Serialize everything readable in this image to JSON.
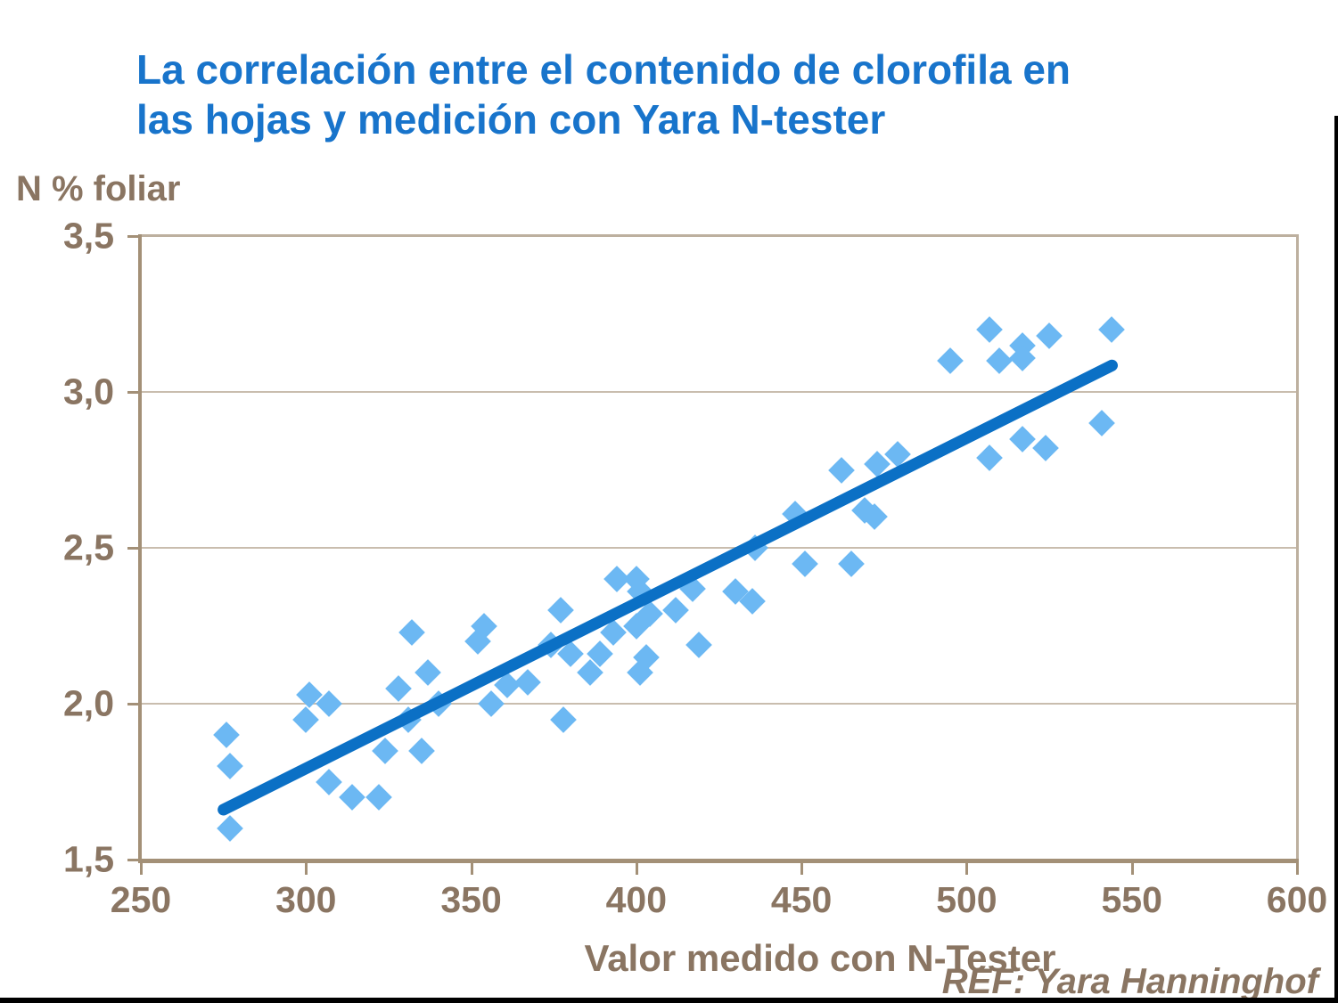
{
  "title": {
    "line1": "La correlación entre el contenido de clorofila en",
    "line2": "las hojas y medición con Yara N-tester"
  },
  "ref_text": "REF: Yara Hanninghof",
  "colors": {
    "title_blue": "#1874CB",
    "text_brown": "#8A7562",
    "axis_line": "#A39077",
    "frame_line": "#BDB09F",
    "gridline": "#C9BDAE",
    "marker_fill": "#6CB8F3",
    "trend_line": "#0B70C5",
    "border_black": "#000000",
    "background": "#FFFFFF"
  },
  "chart_data": {
    "type": "scatter",
    "title": "La correlación entre el contenido de clorofila en las hojas y medición con Yara N-tester",
    "xlabel": "Valor medido con N-Tester",
    "ylabel": "N % foliar",
    "xlim": [
      250,
      600
    ],
    "ylim": [
      1.5,
      3.5
    ],
    "x_ticks": [
      {
        "value": 250,
        "label": "250"
      },
      {
        "value": 300,
        "label": "300"
      },
      {
        "value": 350,
        "label": "350"
      },
      {
        "value": 400,
        "label": "400"
      },
      {
        "value": 450,
        "label": "450"
      },
      {
        "value": 500,
        "label": "500"
      },
      {
        "value": 550,
        "label": "550"
      },
      {
        "value": 600,
        "label": "600"
      }
    ],
    "y_ticks": [
      {
        "value": 3.5,
        "label": "3,5"
      },
      {
        "value": 3.0,
        "label": "3,0"
      },
      {
        "value": 2.5,
        "label": "2,5"
      },
      {
        "value": 2.0,
        "label": "2,0"
      },
      {
        "value": 1.5,
        "label": "1,5"
      }
    ],
    "y_gridlines": [
      3.0,
      2.5,
      2.0
    ],
    "grid": "horizontal-only",
    "legend": "none",
    "marker": "diamond",
    "points": [
      [
        276,
        1.9
      ],
      [
        277,
        1.8
      ],
      [
        277,
        1.6
      ],
      [
        300,
        1.95
      ],
      [
        301,
        2.03
      ],
      [
        307,
        2.0
      ],
      [
        307,
        1.75
      ],
      [
        314,
        1.7
      ],
      [
        322,
        1.7
      ],
      [
        324,
        1.85
      ],
      [
        328,
        2.05
      ],
      [
        331,
        1.95
      ],
      [
        332,
        2.23
      ],
      [
        335,
        1.85
      ],
      [
        337,
        2.1
      ],
      [
        340,
        2.0
      ],
      [
        352,
        2.2
      ],
      [
        354,
        2.25
      ],
      [
        356,
        2.0
      ],
      [
        361,
        2.06
      ],
      [
        367,
        2.07
      ],
      [
        374,
        2.19
      ],
      [
        377,
        2.3
      ],
      [
        378,
        1.95
      ],
      [
        380,
        2.16
      ],
      [
        386,
        2.1
      ],
      [
        389,
        2.16
      ],
      [
        393,
        2.23
      ],
      [
        394,
        2.4
      ],
      [
        400,
        2.4
      ],
      [
        401,
        2.36
      ],
      [
        400,
        2.25
      ],
      [
        404,
        2.29
      ],
      [
        403,
        2.15
      ],
      [
        401,
        2.1
      ],
      [
        412,
        2.3
      ],
      [
        417,
        2.37
      ],
      [
        419,
        2.19
      ],
      [
        430,
        2.36
      ],
      [
        435,
        2.33
      ],
      [
        436,
        2.5
      ],
      [
        448,
        2.61
      ],
      [
        451,
        2.45
      ],
      [
        462,
        2.75
      ],
      [
        465,
        2.45
      ],
      [
        469,
        2.62
      ],
      [
        472,
        2.6
      ],
      [
        473,
        2.77
      ],
      [
        479,
        2.8
      ],
      [
        495,
        3.1
      ],
      [
        507,
        3.2
      ],
      [
        507,
        2.79
      ],
      [
        510,
        3.1
      ],
      [
        517,
        3.15
      ],
      [
        517,
        3.11
      ],
      [
        517,
        2.85
      ],
      [
        524,
        2.82
      ],
      [
        525,
        3.18
      ],
      [
        541,
        2.9
      ],
      [
        544,
        3.2
      ]
    ],
    "trend_line": {
      "x1": 275,
      "y1": 1.66,
      "x2": 544,
      "y2": 3.085
    }
  }
}
